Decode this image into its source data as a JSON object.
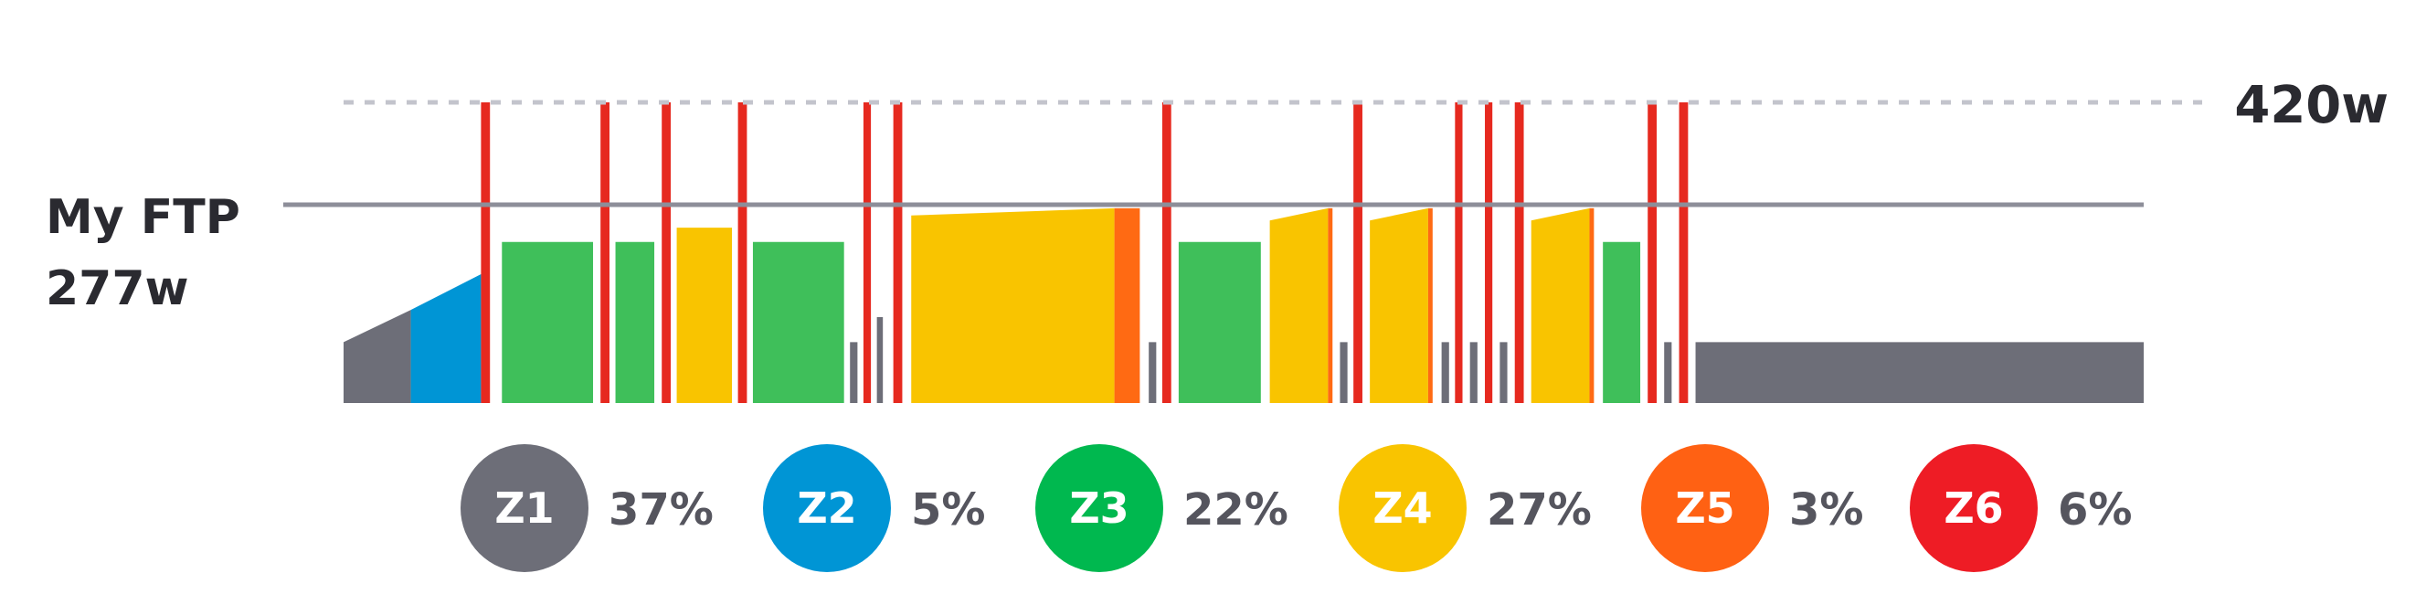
{
  "chart_data": {
    "type": "bar",
    "ftp_label": "My FTP",
    "ftp_value_label": "277w",
    "ftp_watts": 277,
    "max_label": "420w",
    "max_watts": 420,
    "zone_colors": {
      "Z1": "#6d6e78",
      "Z2": "#0095d5",
      "Z3": "#3fbf5a",
      "Z4": "#f9c400",
      "Z5": "#ff6a13",
      "Z6": "#e6291f"
    },
    "segments": [
      {
        "start": 0,
        "end": 45,
        "from": 85,
        "to": 130,
        "zone": "Z1"
      },
      {
        "start": 45,
        "end": 92,
        "from": 130,
        "to": 180,
        "zone": "Z2"
      },
      {
        "start": 92,
        "end": 98,
        "from": 420,
        "to": 420,
        "zone": "Z6"
      },
      {
        "start": 106,
        "end": 167,
        "from": 225,
        "to": 225,
        "zone": "Z3"
      },
      {
        "start": 172,
        "end": 178,
        "from": 420,
        "to": 420,
        "zone": "Z6"
      },
      {
        "start": 182,
        "end": 208,
        "from": 225,
        "to": 225,
        "zone": "Z3"
      },
      {
        "start": 213,
        "end": 219,
        "from": 420,
        "to": 420,
        "zone": "Z6"
      },
      {
        "start": 223,
        "end": 260,
        "from": 245,
        "to": 245,
        "zone": "Z4"
      },
      {
        "start": 264,
        "end": 270,
        "from": 420,
        "to": 420,
        "zone": "Z6"
      },
      {
        "start": 274,
        "end": 335,
        "from": 225,
        "to": 225,
        "zone": "Z3"
      },
      {
        "start": 339,
        "end": 344,
        "from": 85,
        "to": 85,
        "zone": "Z1"
      },
      {
        "start": 348,
        "end": 353,
        "from": 420,
        "to": 420,
        "zone": "Z6"
      },
      {
        "start": 357,
        "end": 361,
        "from": 120,
        "to": 120,
        "zone": "Z1"
      },
      {
        "start": 368,
        "end": 374,
        "from": 420,
        "to": 420,
        "zone": "Z6"
      },
      {
        "start": 380,
        "end": 516,
        "from": 262,
        "to": 272,
        "zone": "Z4"
      },
      {
        "start": 516,
        "end": 533,
        "from": 272,
        "to": 272,
        "zone": "Z5"
      },
      {
        "start": 539,
        "end": 544,
        "from": 85,
        "to": 85,
        "zone": "Z1"
      },
      {
        "start": 548,
        "end": 554,
        "from": 420,
        "to": 420,
        "zone": "Z6"
      },
      {
        "start": 559,
        "end": 614,
        "from": 225,
        "to": 225,
        "zone": "Z3"
      },
      {
        "start": 620,
        "end": 659,
        "from": 255,
        "to": 272,
        "zone": "Z4"
      },
      {
        "start": 659,
        "end": 662,
        "from": 272,
        "to": 272,
        "zone": "Z5"
      },
      {
        "start": 667,
        "end": 672,
        "from": 85,
        "to": 85,
        "zone": "Z1"
      },
      {
        "start": 676,
        "end": 682,
        "from": 420,
        "to": 420,
        "zone": "Z6"
      },
      {
        "start": 687,
        "end": 726,
        "from": 255,
        "to": 272,
        "zone": "Z4"
      },
      {
        "start": 726,
        "end": 729,
        "from": 272,
        "to": 272,
        "zone": "Z5"
      },
      {
        "start": 735,
        "end": 740,
        "from": 85,
        "to": 85,
        "zone": "Z1"
      },
      {
        "start": 744,
        "end": 749,
        "from": 420,
        "to": 420,
        "zone": "Z6"
      },
      {
        "start": 754,
        "end": 759,
        "from": 85,
        "to": 85,
        "zone": "Z1"
      },
      {
        "start": 764,
        "end": 769,
        "from": 420,
        "to": 420,
        "zone": "Z6"
      },
      {
        "start": 774,
        "end": 779,
        "from": 85,
        "to": 85,
        "zone": "Z1"
      },
      {
        "start": 784,
        "end": 790,
        "from": 420,
        "to": 420,
        "zone": "Z6"
      },
      {
        "start": 795,
        "end": 834,
        "from": 255,
        "to": 272,
        "zone": "Z4"
      },
      {
        "start": 834,
        "end": 837,
        "from": 272,
        "to": 272,
        "zone": "Z5"
      },
      {
        "start": 843,
        "end": 868,
        "from": 225,
        "to": 225,
        "zone": "Z3"
      },
      {
        "start": 873,
        "end": 879,
        "from": 420,
        "to": 420,
        "zone": "Z6"
      },
      {
        "start": 884,
        "end": 889,
        "from": 85,
        "to": 85,
        "zone": "Z1"
      },
      {
        "start": 894,
        "end": 900,
        "from": 420,
        "to": 420,
        "zone": "Z6"
      },
      {
        "start": 905,
        "end": 1205,
        "from": 85,
        "to": 85,
        "zone": "Z1"
      }
    ],
    "legend": [
      {
        "zone": "Z1",
        "label": "Z1",
        "percent": "37%",
        "color": "#6d6e78"
      },
      {
        "zone": "Z2",
        "label": "Z2",
        "percent": "5%",
        "color": "#0095d5"
      },
      {
        "zone": "Z3",
        "label": "Z3",
        "percent": "22%",
        "color": "#00b84f"
      },
      {
        "zone": "Z4",
        "label": "Z4",
        "percent": "27%",
        "color": "#f9c400"
      },
      {
        "zone": "Z5",
        "label": "Z5",
        "percent": "3%",
        "color": "#ff6113"
      },
      {
        "zone": "Z6",
        "label": "Z6",
        "percent": "6%",
        "color": "#ee1c25"
      }
    ]
  }
}
